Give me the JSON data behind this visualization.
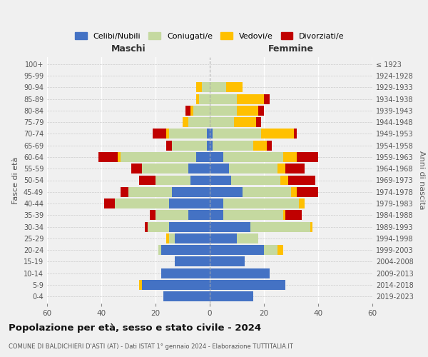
{
  "age_groups": [
    "100+",
    "95-99",
    "90-94",
    "85-89",
    "80-84",
    "75-79",
    "70-74",
    "65-69",
    "60-64",
    "55-59",
    "50-54",
    "45-49",
    "40-44",
    "35-39",
    "30-34",
    "25-29",
    "20-24",
    "15-19",
    "10-14",
    "5-9",
    "0-4"
  ],
  "birth_years": [
    "≤ 1923",
    "1924-1928",
    "1929-1933",
    "1934-1938",
    "1939-1943",
    "1944-1948",
    "1949-1953",
    "1954-1958",
    "1959-1963",
    "1964-1968",
    "1969-1973",
    "1974-1978",
    "1979-1983",
    "1984-1988",
    "1989-1993",
    "1994-1998",
    "1999-2003",
    "2004-2008",
    "2009-2013",
    "2014-2018",
    "2019-2023"
  ],
  "male": {
    "celibi": [
      0,
      0,
      0,
      0,
      0,
      0,
      1,
      1,
      5,
      8,
      7,
      14,
      15,
      8,
      15,
      13,
      18,
      13,
      18,
      25,
      17
    ],
    "coniugati": [
      0,
      0,
      3,
      4,
      6,
      8,
      14,
      13,
      28,
      17,
      13,
      16,
      20,
      12,
      8,
      2,
      1,
      0,
      0,
      0,
      0
    ],
    "vedovi": [
      0,
      0,
      2,
      1,
      1,
      2,
      1,
      0,
      1,
      0,
      0,
      0,
      0,
      0,
      0,
      1,
      0,
      0,
      0,
      1,
      0
    ],
    "divorziati": [
      0,
      0,
      0,
      0,
      2,
      0,
      5,
      2,
      7,
      4,
      6,
      3,
      4,
      2,
      1,
      0,
      0,
      0,
      0,
      0,
      0
    ]
  },
  "female": {
    "nubili": [
      0,
      0,
      0,
      0,
      0,
      0,
      1,
      1,
      5,
      7,
      8,
      12,
      5,
      5,
      15,
      10,
      20,
      13,
      22,
      28,
      16
    ],
    "coniugate": [
      0,
      0,
      6,
      10,
      10,
      9,
      18,
      15,
      22,
      18,
      18,
      18,
      28,
      22,
      22,
      8,
      5,
      0,
      0,
      0,
      0
    ],
    "vedove": [
      0,
      0,
      6,
      10,
      8,
      8,
      12,
      5,
      5,
      3,
      3,
      2,
      2,
      1,
      1,
      0,
      2,
      0,
      0,
      0,
      0
    ],
    "divorziate": [
      0,
      0,
      0,
      2,
      2,
      2,
      1,
      2,
      8,
      7,
      10,
      8,
      0,
      6,
      0,
      0,
      0,
      0,
      0,
      0,
      0
    ]
  },
  "colors": {
    "celibi": "#4472c4",
    "coniugati": "#c5d9a0",
    "vedovi": "#ffc000",
    "divorziati": "#c00000"
  },
  "xlim": 60,
  "title": "Popolazione per età, sesso e stato civile - 2024",
  "subtitle": "COMUNE DI BALDICHIERI D'ASTI (AT) - Dati ISTAT 1° gennaio 2024 - Elaborazione TUTTITALIA.IT",
  "xlabel_left": "Maschi",
  "xlabel_right": "Femmine",
  "ylabel_left": "Fasce di età",
  "ylabel_right": "Anni di nascita",
  "bg_color": "#f0f0f0",
  "bar_height": 0.85
}
